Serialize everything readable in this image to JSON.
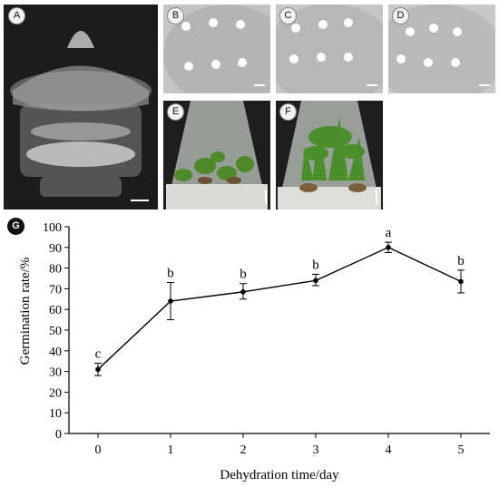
{
  "panels": {
    "a": "A",
    "b": "B",
    "c": "C",
    "d": "D",
    "e": "E",
    "f": "F",
    "g": "G"
  },
  "colors": {
    "photo_dark": "#1a1a1a",
    "dish_gray": "#bdbdbd",
    "plant_green": "#4f8a2a",
    "line": "#000000"
  },
  "chart_data": {
    "type": "line",
    "xlabel": "Dehydration time/day",
    "ylabel": "Germination rate/%",
    "x": [
      0,
      1,
      2,
      3,
      4,
      5
    ],
    "xlim": [
      -0.4,
      5.4
    ],
    "ylim": [
      0,
      100
    ],
    "xticks": [
      "0",
      "1",
      "2",
      "3",
      "4",
      "5"
    ],
    "yticks": [
      "0",
      "10",
      "20",
      "30",
      "40",
      "50",
      "60",
      "70",
      "80",
      "90",
      "100"
    ],
    "series": [
      {
        "values": [
          31,
          64,
          68.5,
          74,
          90,
          73.5
        ],
        "error_low": [
          28,
          55,
          65,
          71.5,
          87.5,
          68
        ],
        "error_high": [
          34,
          73,
          72.5,
          77,
          92.5,
          79
        ],
        "annotations": [
          "c",
          "b",
          "b",
          "b",
          "a",
          "b"
        ]
      }
    ],
    "grid": false
  }
}
